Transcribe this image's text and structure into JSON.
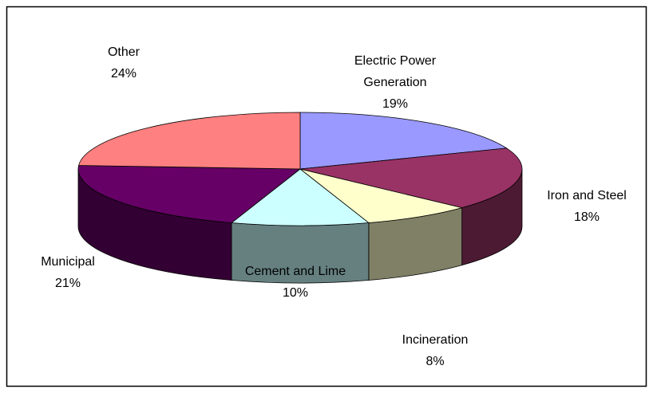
{
  "chart_data": {
    "type": "pie3d",
    "categories": [
      "Electric Power Generation",
      "Iron and Steel",
      "Incineration",
      "Cement and Lime",
      "Municipal",
      "Other"
    ],
    "values": [
      19,
      18,
      8,
      10,
      21,
      24
    ],
    "value_labels": [
      "19%",
      "18%",
      "8%",
      "10%",
      "21%",
      "24%"
    ],
    "colors": [
      "#9999ff",
      "#993366",
      "#ffffcc",
      "#ccffff",
      "#660066",
      "#ff8080"
    ]
  }
}
